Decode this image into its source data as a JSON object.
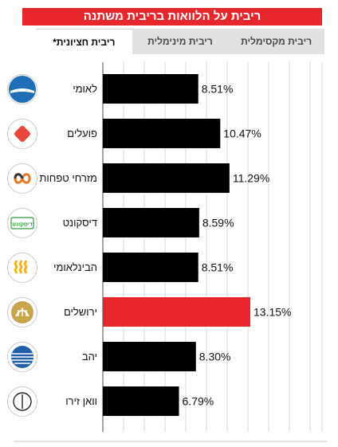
{
  "title": "ריבית על הלוואות בריבית משתנה",
  "tabs": [
    {
      "label": "ריבית מקסימלית",
      "active": false
    },
    {
      "label": "ריבית מינימלית",
      "active": false
    },
    {
      "label": "ריבית חציונית*",
      "active": true
    }
  ],
  "chart_data": {
    "type": "bar",
    "orientation": "horizontal",
    "categories": [
      "לאומי",
      "פועלים",
      "מזרחי טפחות",
      "דיסקונט",
      "הבינלאומי",
      "ירושלים",
      "יהב",
      "וואן זירו"
    ],
    "values": [
      8.51,
      10.47,
      11.29,
      8.59,
      8.51,
      13.15,
      8.3,
      6.79
    ],
    "value_labels": [
      "8.51%",
      "10.47%",
      "11.29%",
      "8.59%",
      "8.51%",
      "13.15%",
      "8.30%",
      "6.79%"
    ],
    "highlight_index": 5,
    "colors": {
      "bar": "#000000",
      "highlight": "#e8272c",
      "grid": "#d9d9d9",
      "title_bg": "#e8272c"
    },
    "grid": true,
    "icons": [
      "leumi-icon",
      "poalim-icon",
      "mizrahi-tefahot-icon",
      "discount-icon",
      "international-icon",
      "jerusalem-icon",
      "yahav-icon",
      "one-zero-icon"
    ],
    "logo_text": {
      "discount": "דיסקונט"
    }
  }
}
